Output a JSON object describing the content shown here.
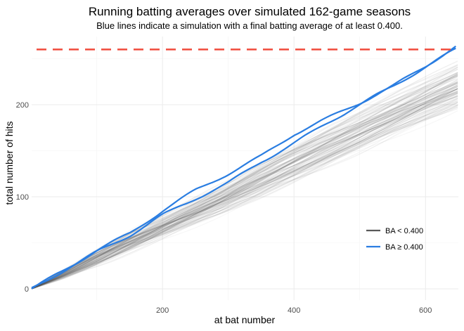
{
  "chart_data": {
    "type": "line",
    "title": "Running batting averages over simulated 162-game seasons",
    "subtitle": "Blue lines indicate a simulation with a final batting average of at least 0.400.",
    "xlabel": "at bat number",
    "ylabel": "total number of hits",
    "xlim": [
      1,
      650
    ],
    "ylim": [
      0,
      270
    ],
    "x_ticks": [
      200,
      400,
      600
    ],
    "y_ticks": [
      0,
      100,
      200
    ],
    "grid": true,
    "legend_position": "right",
    "colors": {
      "low": "#595959",
      "high": "#2a7de1",
      "reference": "#f04b3c"
    },
    "reference_line": {
      "y": 260
    },
    "legend": [
      {
        "label": "BA < 0.400",
        "color": "#595959"
      },
      {
        "label": "BA ≥ 0.400",
        "color": "#2a7de1"
      }
    ],
    "series_low": {
      "name": "BA < 0.400",
      "x": [
        1,
        50,
        100,
        150,
        200,
        250,
        300,
        350,
        400,
        450,
        500,
        550,
        600,
        650
      ],
      "p05": [
        0,
        12,
        26,
        41,
        56,
        71,
        86,
        101,
        117,
        133,
        149,
        166,
        182,
        197
      ],
      "p50": [
        0,
        16,
        33,
        50,
        67,
        84,
        101,
        119,
        136,
        153,
        170,
        187,
        204,
        220
      ],
      "p95": [
        0,
        20,
        40,
        59,
        78,
        97,
        116,
        136,
        155,
        174,
        192,
        210,
        228,
        246
      ]
    },
    "series_high": [
      {
        "name": "BA ≥ 0.400",
        "x": [
          1,
          50,
          100,
          150,
          200,
          250,
          300,
          350,
          400,
          450,
          500,
          550,
          600,
          650
        ],
        "y": [
          0,
          20,
          42,
          60,
          85,
          107,
          125,
          144,
          168,
          185,
          202,
          220,
          242,
          265
        ]
      },
      {
        "name": "BA ≥ 0.400",
        "x": [
          1,
          50,
          100,
          150,
          200,
          250,
          300,
          350,
          400,
          450,
          500,
          550,
          600,
          650
        ],
        "y": [
          0,
          20,
          40,
          58,
          80,
          98,
          115,
          138,
          158,
          180,
          200,
          220,
          241,
          262
        ]
      }
    ]
  }
}
